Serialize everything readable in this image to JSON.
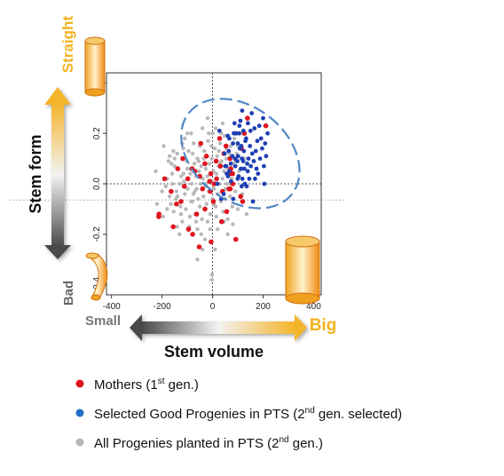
{
  "colors": {
    "mothers": "#e0141e",
    "selected": "#1f3fb4",
    "progenies": "#b8b8b8",
    "ellipse": "#4f86c6",
    "gold": "#f2b320",
    "gray_dark": "#555555"
  },
  "chart_data": {
    "type": "scatter",
    "xlim": [
      -420,
      430
    ],
    "ylim": [
      -0.44,
      0.44
    ],
    "x_ticks": [
      "-400",
      "-200",
      "0",
      "200",
      "400"
    ],
    "x_tick_values": [
      -400,
      -200,
      0,
      200,
      400
    ],
    "y_ticks": [
      "-0.4",
      "-0.2",
      "0.0",
      "0.2",
      "0.4"
    ],
    "y_tick_values": [
      -0.4,
      -0.2,
      0.0,
      0.2,
      0.4
    ],
    "reference_lines": {
      "x": 0,
      "y": 0,
      "outer_y": -0.064
    },
    "ellipse": {
      "center": [
        110,
        0.12
      ],
      "rx_units": 185,
      "ry_units": 0.26,
      "angle_deg": -52
    },
    "series": [
      {
        "name": "Mothers (1st gen.)",
        "color": "#e0141e",
        "points": [
          [
            -213,
            -0.13
          ],
          [
            -212,
            -0.12
          ],
          [
            -190,
            0.02
          ],
          [
            -164,
            -0.03
          ],
          [
            -156,
            -0.17
          ],
          [
            -143,
            -0.08
          ],
          [
            -125,
            -0.07
          ],
          [
            -118,
            0.1
          ],
          [
            -112,
            -0.01
          ],
          [
            -98,
            0.02
          ],
          [
            -81,
            0.06
          ],
          [
            -79,
            -0.2
          ],
          [
            -70,
            0.05
          ],
          [
            -63,
            -0.12
          ],
          [
            -53,
            -0.25
          ],
          [
            -51,
            0.03
          ],
          [
            -47,
            0.16
          ],
          [
            -40,
            -0.02
          ],
          [
            -30,
            -0.1
          ],
          [
            -24,
            0.11
          ],
          [
            -12,
            0.01
          ],
          [
            -9,
            -0.03
          ],
          [
            -7,
            0.04
          ],
          [
            -6,
            -0.23
          ],
          [
            3,
            -0.07
          ],
          [
            6,
            0.0
          ],
          [
            14,
            0.09
          ],
          [
            16,
            0.02
          ],
          [
            28,
            0.18
          ],
          [
            31,
            0.07
          ],
          [
            36,
            -0.15
          ],
          [
            39,
            -0.03
          ],
          [
            45,
            0.12
          ],
          [
            53,
            0.15
          ],
          [
            56,
            -0.11
          ],
          [
            65,
            -0.02
          ],
          [
            67,
            0.04
          ],
          [
            68,
            0.05
          ],
          [
            69,
            0.1
          ],
          [
            70,
            -0.02
          ],
          [
            72,
            0.06
          ],
          [
            79,
            0.04
          ],
          [
            80,
            0.0
          ],
          [
            92,
            -0.22
          ],
          [
            111,
            -0.05
          ],
          [
            114,
            0.14
          ],
          [
            119,
            -0.07
          ],
          [
            126,
            0.2
          ],
          [
            138,
            0.26
          ],
          [
            211,
            0.23
          ],
          [
            -95,
            -0.18
          ],
          [
            -30,
            0.08
          ],
          [
            -138,
            0.06
          ]
        ]
      },
      {
        "name": "Selected Good Progenies in PTS (2nd gen. selected)",
        "color": "#1f3fb4",
        "points": [
          [
            19,
            0.0
          ],
          [
            27,
            0.21
          ],
          [
            34,
            -0.06
          ],
          [
            44,
            -0.04
          ],
          [
            48,
            0.12
          ],
          [
            50,
            0.07
          ],
          [
            54,
            0.07
          ],
          [
            56,
            0.04
          ],
          [
            60,
            0.19
          ],
          [
            61,
            0.03
          ],
          [
            64,
            0.13
          ],
          [
            66,
            0.18
          ],
          [
            66,
            0.05
          ],
          [
            72,
            0.08
          ],
          [
            73,
            0.01
          ],
          [
            78,
            0.11
          ],
          [
            81,
            0.16
          ],
          [
            82,
            -0.06
          ],
          [
            84,
            0.2
          ],
          [
            87,
            0.24
          ],
          [
            89,
            0.1
          ],
          [
            90,
            0.07
          ],
          [
            91,
            0.2
          ],
          [
            94,
            0.2
          ],
          [
            98,
            0.09
          ],
          [
            99,
            0.02
          ],
          [
            100,
            0.16
          ],
          [
            101,
            0.11
          ],
          [
            103,
            0.03
          ],
          [
            105,
            0.2
          ],
          [
            106,
            0.23
          ],
          [
            108,
            0.14
          ],
          [
            110,
            0.25
          ],
          [
            112,
            0.06
          ],
          [
            114,
            0.15
          ],
          [
            115,
            -0.01
          ],
          [
            116,
            0.1
          ],
          [
            117,
            0.29
          ],
          [
            118,
            0.02
          ],
          [
            121,
            0.09
          ],
          [
            122,
            0.21
          ],
          [
            124,
            0.13
          ],
          [
            126,
            0.06
          ],
          [
            128,
            0.0
          ],
          [
            130,
            0.17
          ],
          [
            133,
            0.18
          ],
          [
            135,
            -0.01
          ],
          [
            137,
            0.08
          ],
          [
            139,
            0.05
          ],
          [
            140,
            0.24
          ],
          [
            142,
            0.1
          ],
          [
            145,
            0.02
          ],
          [
            148,
            0.15
          ],
          [
            150,
            0.21
          ],
          [
            151,
            0.07
          ],
          [
            155,
            0.28
          ],
          [
            157,
            0.12
          ],
          [
            160,
            -0.07
          ],
          [
            163,
            0.09
          ],
          [
            166,
            0.22
          ],
          [
            168,
            0.02
          ],
          [
            171,
            0.13
          ],
          [
            174,
            0.06
          ],
          [
            177,
            0.17
          ],
          [
            180,
            0.04
          ],
          [
            185,
            0.23
          ],
          [
            188,
            0.1
          ],
          [
            192,
            0.18
          ],
          [
            196,
            0.14
          ],
          [
            200,
            0.26
          ],
          [
            203,
            0.07
          ],
          [
            208,
            0.16
          ],
          [
            212,
            0.11
          ],
          [
            205,
            0.0
          ],
          [
            218,
            0.2
          ]
        ]
      },
      {
        "name": "All Progenies planted in PTS (2nd gen.)",
        "color": "#b8b8b8",
        "points": [
          [
            -196,
            -0.13
          ],
          [
            -193,
            0.15
          ],
          [
            -170,
            0.11
          ],
          [
            -165,
            -0.08
          ],
          [
            -163,
            0.08
          ],
          [
            -159,
            0.0
          ],
          [
            -160,
            0.04
          ],
          [
            -154,
            -0.11
          ],
          [
            -150,
            0.1
          ],
          [
            -143,
            -0.03
          ],
          [
            -139,
            -0.05
          ],
          [
            -135,
            0.06
          ],
          [
            -131,
            -0.2
          ],
          [
            -127,
            -0.09
          ],
          [
            -124,
            0.03
          ],
          [
            -120,
            -0.15
          ],
          [
            -116,
            0.14
          ],
          [
            -113,
            0.01
          ],
          [
            -110,
            -0.04
          ],
          [
            -106,
            -0.1
          ],
          [
            -103,
            0.09
          ],
          [
            -99,
            -0.02
          ],
          [
            -96,
            0.06
          ],
          [
            -92,
            -0.17
          ],
          [
            -88,
            0.04
          ],
          [
            -85,
            -0.07
          ],
          [
            -82,
            0.0
          ],
          [
            -79,
            0.12
          ],
          [
            -76,
            -0.04
          ],
          [
            -72,
            0.08
          ],
          [
            -69,
            -0.12
          ],
          [
            -66,
            0.03
          ],
          [
            -63,
            -0.02
          ],
          [
            -60,
            0.1
          ],
          [
            -57,
            -0.06
          ],
          [
            -54,
            0.05
          ],
          [
            -51,
            -0.09
          ],
          [
            -48,
            0.0
          ],
          [
            -45,
            0.07
          ],
          [
            -42,
            -0.14
          ],
          [
            -39,
            0.02
          ],
          [
            -36,
            -0.05
          ],
          [
            -33,
            0.13
          ],
          [
            -30,
            -0.01
          ],
          [
            -27,
            0.06
          ],
          [
            -24,
            -0.08
          ],
          [
            -21,
            0.03
          ],
          [
            -18,
            0.17
          ],
          [
            -15,
            -0.03
          ],
          [
            -12,
            0.08
          ],
          [
            -9,
            -0.12
          ],
          [
            -6,
            0.01
          ],
          [
            -3,
            0.1
          ],
          [
            0,
            -0.06
          ],
          [
            3,
            0.05
          ],
          [
            6,
            -0.02
          ],
          [
            9,
            0.14
          ],
          [
            12,
            -0.09
          ],
          [
            15,
            0.04
          ],
          [
            18,
            0.11
          ],
          [
            21,
            -0.04
          ],
          [
            24,
            0.07
          ],
          [
            27,
            0.0
          ],
          [
            30,
            0.16
          ],
          [
            33,
            -0.07
          ],
          [
            36,
            0.09
          ],
          [
            39,
            0.02
          ],
          [
            42,
            -0.11
          ],
          [
            45,
            0.05
          ],
          [
            48,
            0.19
          ],
          [
            51,
            -0.02
          ],
          [
            54,
            0.1
          ],
          [
            57,
            0.0
          ],
          [
            60,
            -0.14
          ],
          [
            63,
            0.06
          ],
          [
            66,
            0.12
          ],
          [
            69,
            -0.05
          ],
          [
            72,
            0.15
          ],
          [
            75,
            0.02
          ],
          [
            78,
            -0.09
          ],
          [
            82,
            0.08
          ],
          [
            86,
            0.18
          ],
          [
            90,
            -0.03
          ],
          [
            95,
            0.12
          ],
          [
            100,
            -0.1
          ],
          [
            105,
            0.05
          ],
          [
            110,
            0.2
          ],
          [
            118,
            -0.04
          ],
          [
            125,
            0.1
          ],
          [
            135,
            -0.12
          ],
          [
            -170,
            -0.05
          ],
          [
            -140,
            0.12
          ],
          [
            -110,
            0.18
          ],
          [
            -85,
            0.2
          ],
          [
            -60,
            -0.18
          ],
          [
            -40,
            0.22
          ],
          [
            -20,
            -0.15
          ],
          [
            0,
            0.2
          ],
          [
            20,
            -0.18
          ],
          [
            40,
            0.24
          ],
          [
            -225,
            0.05
          ],
          [
            -200,
            -0.03
          ],
          [
            -180,
            0.02
          ],
          [
            -60,
            -0.3
          ],
          [
            -30,
            -0.22
          ],
          [
            10,
            -0.26
          ],
          [
            -100,
            0.2
          ],
          [
            -20,
            0.26
          ],
          [
            60,
            -0.2
          ],
          [
            -130,
            0.0
          ],
          [
            -75,
            0.16
          ],
          [
            -45,
            -0.2
          ],
          [
            -15,
            0.2
          ],
          [
            15,
            -0.13
          ],
          [
            35,
            0.2
          ],
          [
            -90,
            -0.13
          ],
          [
            -50,
            0.15
          ],
          [
            -10,
            -0.18
          ],
          [
            25,
            0.13
          ],
          [
            -180,
            -0.1
          ],
          [
            -150,
            0.07
          ],
          [
            -120,
            0.16
          ],
          [
            80,
            -0.16
          ],
          [
            100,
            0.15
          ],
          [
            120,
            0.06
          ],
          [
            -220,
            -0.08
          ],
          [
            -2,
            -0.36
          ],
          [
            -3,
            -0.38
          ],
          [
            -140,
            -0.17
          ],
          [
            -100,
            0.06
          ],
          [
            -70,
            -0.03
          ],
          [
            -35,
            0.1
          ],
          [
            5,
            -0.08
          ],
          [
            45,
            -0.15
          ],
          [
            -25,
            0.0
          ],
          [
            -55,
            0.09
          ],
          [
            -80,
            -0.07
          ],
          [
            -115,
            0.04
          ],
          [
            -145,
            -0.06
          ],
          [
            -175,
            0.09
          ],
          [
            30,
            0.08
          ],
          [
            50,
            -0.06
          ],
          [
            70,
            0.0
          ],
          [
            90,
            0.09
          ],
          [
            -5,
            0.15
          ],
          [
            -65,
            -0.15
          ],
          [
            -95,
            0.13
          ],
          [
            -125,
            -0.12
          ],
          [
            -155,
            0.13
          ],
          [
            -185,
            -0.01
          ],
          [
            12,
            0.22
          ],
          [
            -40,
            -0.26
          ],
          [
            55,
            0.14
          ]
        ]
      }
    ]
  },
  "labels": {
    "y_axis": "Stem form",
    "x_axis": "Stem volume",
    "straight": "Straight",
    "bad": "Bad",
    "small": "Small",
    "big": "Big"
  },
  "legend": [
    {
      "text": "Mothers (1",
      "sup": "st",
      "rest": " gen.)",
      "color": "#e0141e"
    },
    {
      "text": "Selected Good Progenies in PTS (2",
      "sup": "nd",
      "rest": " gen. selected)",
      "color": "#1f6fc6"
    },
    {
      "text": "All Progenies planted in PTS (2",
      "sup": "nd",
      "rest": " gen.)",
      "color": "#b8b8b8"
    }
  ]
}
